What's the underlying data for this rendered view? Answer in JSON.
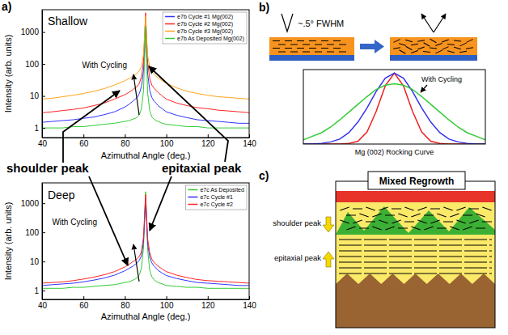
{
  "panels": [
    "a)",
    "b)",
    "c)"
  ],
  "panel_a_labels": [
    "shoulder peak",
    "epitaxial peak"
  ],
  "diagram_b": {
    "fwhm": "~.5° FWHM"
  },
  "diagram_c": {
    "title": "Mixed Regrowth",
    "labels": [
      "shoulder peak",
      "epitaxial peak"
    ]
  },
  "chart_data": [
    {
      "type": "line",
      "title": "Shallow",
      "xlabel": "Azimuthal Angle (deg.)",
      "ylabel": "Intensity (arb. units)",
      "annotation": "With Cycling",
      "log": "y",
      "grid": false,
      "legend": "upper right",
      "xlim": [
        40,
        140
      ],
      "ylim": [
        0.5,
        5000
      ],
      "xticks": [
        40,
        60,
        80,
        100,
        120,
        140
      ],
      "yticks": [
        1,
        10,
        100,
        1000
      ],
      "x": [
        40,
        45,
        50,
        55,
        60,
        65,
        70,
        75,
        80,
        82,
        84,
        85,
        86,
        87,
        88,
        89,
        89.5,
        90,
        90.5,
        91,
        92,
        93,
        94,
        95,
        96,
        98,
        100,
        105,
        110,
        115,
        120,
        125,
        130,
        135,
        140
      ],
      "series": [
        {
          "name": "e7b Cycle #1 Mg(002)",
          "color": "#3333ff",
          "values": [
            1.5,
            1.6,
            1.7,
            1.8,
            2,
            2.2,
            2.6,
            3.2,
            4.5,
            5.5,
            7,
            8,
            9,
            12,
            20,
            60,
            300,
            1800,
            250,
            50,
            15,
            9,
            7,
            6,
            5,
            4,
            3.2,
            2.5,
            2.1,
            1.8,
            1.7,
            1.6,
            1.5,
            1.4,
            1.4
          ]
        },
        {
          "name": "e7b Cycle #2 Mg(002)",
          "color": "#ff2222",
          "values": [
            3,
            3.2,
            3.5,
            3.8,
            4.2,
            5,
            6,
            8,
            11,
            13,
            16,
            18,
            20,
            25,
            40,
            120,
            700,
            4000,
            600,
            110,
            35,
            22,
            18,
            15,
            13,
            10,
            8,
            6,
            5,
            4.3,
            4,
            3.6,
            3.4,
            3.2,
            3
          ]
        },
        {
          "name": "e7b Cycle #3 Mg(002)",
          "color": "#ffa31a",
          "values": [
            8,
            8.5,
            9.5,
            10.5,
            12,
            14,
            17,
            22,
            30,
            35,
            42,
            46,
            52,
            62,
            85,
            200,
            800,
            3200,
            650,
            180,
            80,
            58,
            48,
            42,
            37,
            30,
            25,
            18,
            14,
            12,
            10.5,
            9.5,
            9,
            8.5,
            8
          ]
        },
        {
          "name": "e7b As Deposited Mg(002)",
          "color": "#33cc33",
          "values": [
            1,
            1,
            1,
            1.1,
            1.1,
            1.2,
            1.3,
            1.4,
            1.6,
            1.7,
            1.9,
            2,
            2.2,
            2.6,
            4,
            15,
            150,
            1500,
            120,
            12,
            3.5,
            2.2,
            1.9,
            1.7,
            1.6,
            1.4,
            1.3,
            1.2,
            1.1,
            1.1,
            1,
            1,
            1,
            1,
            1
          ]
        }
      ]
    },
    {
      "type": "line",
      "title": "Deep",
      "xlabel": "Azimuthal Angle (deg.)",
      "ylabel": "Intensity (arb. units)",
      "annotation": "With Cycling",
      "log": "y",
      "grid": false,
      "legend": "upper right",
      "xlim": [
        40,
        140
      ],
      "ylim": [
        0.5,
        5000
      ],
      "xticks": [
        40,
        60,
        80,
        100,
        120,
        140
      ],
      "yticks": [
        1,
        10,
        100,
        1000
      ],
      "x": [
        40,
        45,
        50,
        55,
        60,
        65,
        70,
        75,
        80,
        82,
        84,
        85,
        86,
        87,
        88,
        89,
        89.5,
        90,
        90.5,
        91,
        92,
        93,
        94,
        95,
        96,
        98,
        100,
        105,
        110,
        115,
        120,
        125,
        130,
        135,
        140
      ],
      "series": [
        {
          "name": "e7c As Deposited",
          "color": "#33cc33",
          "values": [
            1.2,
            1.2,
            1.2,
            1.3,
            1.3,
            1.4,
            1.5,
            1.6,
            1.9,
            2,
            2.3,
            2.5,
            2.8,
            3.5,
            6,
            30,
            300,
            2500,
            250,
            25,
            5,
            3,
            2.4,
            2.1,
            1.9,
            1.7,
            1.5,
            1.4,
            1.3,
            1.3,
            1.2,
            1.2,
            1.2,
            1.2,
            1.2
          ]
        },
        {
          "name": "e7c Cycle #1",
          "color": "#3333ff",
          "values": [
            1.5,
            1.6,
            1.7,
            1.8,
            2,
            2.3,
            2.7,
            3.4,
            4.8,
            5.8,
            7,
            8,
            9,
            11,
            16,
            50,
            250,
            1500,
            220,
            40,
            14,
            9,
            7,
            6,
            5,
            4,
            3.3,
            2.6,
            2.2,
            1.9,
            1.8,
            1.7,
            1.6,
            1.5,
            1.5
          ]
        },
        {
          "name": "e7c Cycle #2",
          "color": "#ff2222",
          "values": [
            1.8,
            1.9,
            2,
            2.2,
            2.5,
            2.9,
            3.5,
            4.5,
            6.5,
            8,
            10,
            11,
            12.5,
            15,
            22,
            70,
            400,
            2000,
            350,
            60,
            20,
            12,
            9.5,
            8,
            7,
            5.5,
            4.5,
            3.4,
            2.8,
            2.4,
            2.2,
            2.1,
            2,
            1.9,
            1.8
          ]
        }
      ]
    },
    {
      "type": "line",
      "xlabel": "Mg (002) Rocking Curve",
      "annotation": "With Cycling",
      "tick_labels": false,
      "grid": false,
      "xlim": [
        -5,
        5
      ],
      "ylim": [
        0,
        1.05
      ],
      "x": [
        -5,
        -4.5,
        -4,
        -3.5,
        -3,
        -2.5,
        -2,
        -1.5,
        -1,
        -0.5,
        0,
        0.5,
        1,
        1.5,
        2,
        2.5,
        3,
        3.5,
        4,
        4.5,
        5
      ],
      "series": [
        {
          "color": "#ee2222",
          "values": [
            0,
            0,
            0,
            0,
            0,
            0.008,
            0.04,
            0.17,
            0.46,
            0.82,
            1,
            0.82,
            0.46,
            0.17,
            0.04,
            0.008,
            0,
            0,
            0,
            0,
            0
          ]
        },
        {
          "color": "#3333ee",
          "values": [
            0,
            0,
            0.01,
            0.03,
            0.07,
            0.16,
            0.31,
            0.51,
            0.74,
            0.93,
            1,
            0.93,
            0.74,
            0.51,
            0.31,
            0.16,
            0.07,
            0.03,
            0.01,
            0,
            0
          ]
        },
        {
          "color": "#33cc33",
          "values": [
            0.06,
            0.11,
            0.16,
            0.24,
            0.34,
            0.45,
            0.56,
            0.67,
            0.77,
            0.83,
            0.85,
            0.83,
            0.77,
            0.67,
            0.56,
            0.45,
            0.34,
            0.24,
            0.16,
            0.11,
            0.06
          ]
        }
      ]
    }
  ]
}
